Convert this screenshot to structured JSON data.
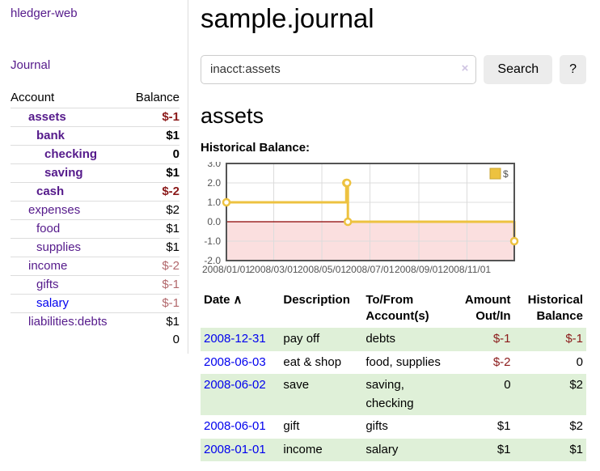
{
  "app": {
    "title": "hledger-web"
  },
  "sidebar": {
    "journal_link": "Journal",
    "accounts_table": {
      "headers": {
        "account": "Account",
        "balance": "Balance"
      },
      "rows": [
        {
          "name": "assets",
          "indent": 1,
          "balance": "$-1",
          "bold": true,
          "balance_class": "neg"
        },
        {
          "name": "bank",
          "indent": 2,
          "balance": "$1",
          "bold": true,
          "balance_class": ""
        },
        {
          "name": "checking",
          "indent": 3,
          "balance": "0",
          "bold": true,
          "balance_class": ""
        },
        {
          "name": "saving",
          "indent": 3,
          "balance": "$1",
          "bold": true,
          "balance_class": ""
        },
        {
          "name": "cash",
          "indent": 2,
          "balance": "$-2",
          "bold": true,
          "balance_class": "neg"
        },
        {
          "name": "expenses",
          "indent": 1,
          "balance": "$2",
          "bold": false,
          "balance_class": ""
        },
        {
          "name": "food",
          "indent": 2,
          "balance": "$1",
          "bold": false,
          "balance_class": ""
        },
        {
          "name": "supplies",
          "indent": 2,
          "balance": "$1",
          "bold": false,
          "balance_class": ""
        },
        {
          "name": "income",
          "indent": 1,
          "balance": "$-2",
          "bold": false,
          "balance_class": "neg-muted"
        },
        {
          "name": "gifts",
          "indent": 2,
          "balance": "$-1",
          "bold": false,
          "balance_class": "neg-muted"
        },
        {
          "name": "salary",
          "indent": 2,
          "balance": "$-1",
          "bold": false,
          "balance_class": "neg-muted",
          "blue": true
        },
        {
          "name": "liabilities:debts",
          "indent": 1,
          "balance": "$1",
          "bold": false,
          "balance_class": ""
        }
      ],
      "total": "0"
    }
  },
  "main": {
    "title": "sample.journal",
    "search": {
      "value": "inacct:assets",
      "clear_icon": "×",
      "search_button": "Search",
      "help_button": "?"
    },
    "account_heading": "assets"
  },
  "chart_data": {
    "type": "line",
    "step": true,
    "title": "Historical Balance:",
    "x_domain": [
      "2008-01-01",
      "2008-12-31"
    ],
    "ylim": [
      -2,
      3
    ],
    "y_ticks": [
      "3.0",
      "2.0",
      "1.0",
      "0.0",
      "-1.0",
      "-2.0"
    ],
    "x_ticks": [
      {
        "date": "2008-01-01",
        "label": "2008/01/01"
      },
      {
        "date": "2008-03-01",
        "label": "2008/03/01"
      },
      {
        "date": "2008-05-01",
        "label": "2008/05/01"
      },
      {
        "date": "2008-07-01",
        "label": "2008/07/01"
      },
      {
        "date": "2008-09-01",
        "label": "2008/09/01"
      },
      {
        "date": "2008-11-01",
        "label": "2008/11/01"
      }
    ],
    "series": [
      {
        "name": "$",
        "color": "#edc240",
        "points": [
          {
            "date": "2008-01-01",
            "value": 1
          },
          {
            "date": "2008-06-01",
            "value": 2
          },
          {
            "date": "2008-06-02",
            "value": 2
          },
          {
            "date": "2008-06-03",
            "value": 0
          },
          {
            "date": "2008-12-31",
            "value": -1
          }
        ]
      }
    ],
    "legend": {
      "label": "$",
      "position": "top-right"
    },
    "grid": true,
    "colors": {
      "line": "#edc240",
      "marker_fill": "#ffffff",
      "negative_region": "#fbdfdf",
      "zero_line": "#8b0000",
      "border": "#545454",
      "gridline": "#dcdcdc",
      "tick_text": "#545454"
    }
  },
  "register": {
    "sort_indicator": "∧",
    "headers": [
      {
        "label": "Date"
      },
      {
        "label": "Description"
      },
      {
        "label": "To/From\nAccount(s)"
      },
      {
        "label": "Amount\nOut/In"
      },
      {
        "label": "Historical\nBalance"
      }
    ],
    "rows": [
      {
        "date": "2008-12-31",
        "description": "pay off",
        "accounts": "debts",
        "amount": "$-1",
        "amount_negative": true,
        "balance": "$-1",
        "balance_negative": true
      },
      {
        "date": "2008-06-03",
        "description": "eat & shop",
        "accounts": "food, supplies",
        "amount": "$-2",
        "amount_negative": true,
        "balance": "0",
        "balance_negative": false
      },
      {
        "date": "2008-06-02",
        "description": "save",
        "accounts": "saving, checking",
        "amount": "0",
        "amount_negative": false,
        "balance": "$2",
        "balance_negative": false
      },
      {
        "date": "2008-06-01",
        "description": "gift",
        "accounts": "gifts",
        "amount": "$1",
        "amount_negative": false,
        "balance": "$2",
        "balance_negative": false
      },
      {
        "date": "2008-01-01",
        "description": "income",
        "accounts": "salary",
        "amount": "$1",
        "amount_negative": false,
        "balance": "$1",
        "balance_negative": false
      }
    ]
  },
  "colors": {
    "link_purple": "#551a8b",
    "link_blue": "#0000ee",
    "negative": "#8b1a1a",
    "negative_muted": "#b2686c",
    "stripe_green": "#dff0d8",
    "button_gray": "#ececec"
  }
}
